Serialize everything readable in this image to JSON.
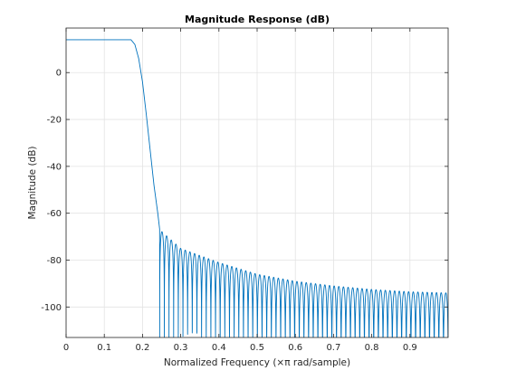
{
  "chart_data": {
    "type": "line",
    "title": "Magnitude Response (dB)",
    "xlabel": "Normalized Frequency (×π rad/sample)",
    "ylabel": "Magnitude (dB)",
    "xlim": [
      0,
      1
    ],
    "ylim": [
      -113,
      19
    ],
    "xticks": [
      0,
      0.1,
      0.2,
      0.3,
      0.4,
      0.5,
      0.6,
      0.7,
      0.8,
      0.9
    ],
    "xtick_labels": [
      "0",
      "0.1",
      "0.2",
      "0.3",
      "0.4",
      "0.5",
      "0.6",
      "0.7",
      "0.8",
      "0.9"
    ],
    "yticks": [
      0,
      -20,
      -40,
      -60,
      -80,
      -100
    ],
    "ytick_labels": [
      "0",
      "-20",
      "-40",
      "-60",
      "-80",
      "-100"
    ],
    "grid": true,
    "line_color": "#0072bd",
    "passband": {
      "x": [
        0,
        0.17
      ],
      "level_db": 14
    },
    "transition": {
      "x": [
        0.0,
        0.17,
        0.18,
        0.19,
        0.2,
        0.21,
        0.22,
        0.23,
        0.24,
        0.245
      ],
      "y": [
        14,
        14,
        12,
        6,
        -4,
        -18,
        -33,
        -48,
        -60,
        -67
      ]
    },
    "stopband_envelope": {
      "x": [
        0.245,
        0.3,
        0.4,
        0.5,
        0.6,
        0.7,
        0.8,
        0.9,
        1.0
      ],
      "y": [
        -67,
        -75,
        -81,
        -86,
        -89,
        -91,
        -92.5,
        -93.5,
        -94
      ]
    },
    "stopband_ripple_count": 62
  }
}
